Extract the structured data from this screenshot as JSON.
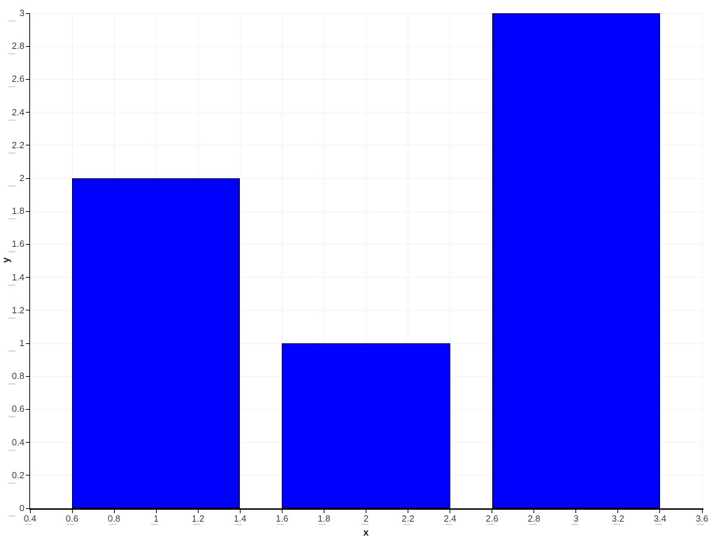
{
  "chart_data": {
    "type": "bar",
    "title": "",
    "xlabel": "x",
    "ylabel": "y",
    "x": [
      1,
      2,
      3
    ],
    "values": [
      2,
      1,
      3
    ],
    "bar_width": 0.8,
    "xlim": [
      0.4,
      3.6
    ],
    "ylim": [
      0,
      3
    ],
    "x_ticks": {
      "values": [
        0.4,
        0.6,
        0.8,
        1,
        1.2,
        1.4,
        1.6,
        1.8,
        2,
        2.2,
        2.4,
        2.6,
        2.8,
        3,
        3.2,
        3.4,
        3.6
      ],
      "labels": [
        "0.4",
        "0.6",
        "0.8",
        "1",
        "1.2",
        "1.4",
        "1.6",
        "1.8",
        "2",
        "2.2",
        "2.4",
        "2.6",
        "2.8",
        "3",
        "3.2",
        "3.4",
        "3.6"
      ]
    },
    "y_ticks": {
      "values": [
        0,
        0.2,
        0.4,
        0.6,
        0.8,
        1,
        1.2,
        1.4,
        1.6,
        1.8,
        2,
        2.2,
        2.4,
        2.6,
        2.8,
        3
      ],
      "labels": [
        "0",
        "0.2",
        "0.4",
        "0.6",
        "0.8",
        "1",
        "1.2",
        "1.4",
        "1.6",
        "1.8",
        "2",
        "2.2",
        "2.4",
        "2.6",
        "2.8",
        "3"
      ]
    },
    "grid": true,
    "legend": null,
    "colors": {
      "bar_fill": "#0000ff",
      "bar_stroke": "#000000",
      "grid": "#f2f2f2",
      "axis": "#000000",
      "tick_label": "#3a3a3a",
      "axis_label": "#1a1a1a",
      "minor_dash": "#d9d9d9",
      "background": "#ffffff"
    }
  }
}
